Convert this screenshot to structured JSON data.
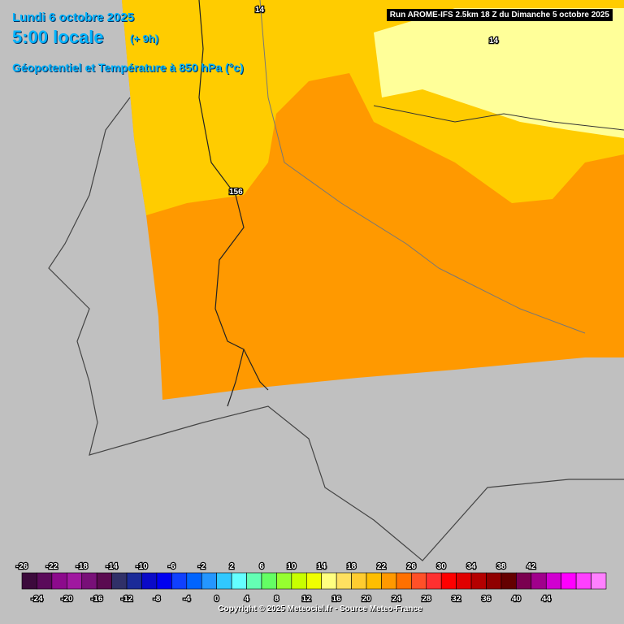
{
  "header": {
    "date": "Lundi 6 octobre 2025",
    "time": "5:00 locale",
    "lead": "(+ 9h)",
    "field": "Géopotentiel et Température à 850 hPa (°c)"
  },
  "run": "Run AROME-IFS 2.5km 18 Z du Dimanche 5 octobre 2025",
  "map_labels": [
    "14",
    "14",
    "156"
  ],
  "legend": {
    "top_labels": [
      "-26",
      "-22",
      "-18",
      "-14",
      "-10",
      "-6",
      "-2",
      "2",
      "6",
      "10",
      "14",
      "18",
      "22",
      "26",
      "30",
      "34",
      "38",
      "42"
    ],
    "bottom_labels": [
      "-24",
      "-20",
      "-16",
      "-12",
      "-8",
      "-4",
      "0",
      "4",
      "8",
      "12",
      "16",
      "20",
      "24",
      "28",
      "32",
      "36",
      "40",
      "44"
    ],
    "colors": [
      "#3c0a3c",
      "#5a0a5a",
      "#8c0a8c",
      "#a018a0",
      "#781078",
      "#5a0a50",
      "#303068",
      "#1a2a98",
      "#0a0ac8",
      "#0000f0",
      "#1040ff",
      "#0064ff",
      "#2496ff",
      "#30c8ff",
      "#64ffff",
      "#64ffb4",
      "#64ff64",
      "#96ff30",
      "#c8ff00",
      "#f0ff00",
      "#ffff80",
      "#ffe060",
      "#ffcc30",
      "#ffbe00",
      "#ff9900",
      "#ff7000",
      "#ff5028",
      "#ff3030",
      "#ff0000",
      "#e00000",
      "#b40000",
      "#900000",
      "#640000",
      "#7a0050",
      "#a0008c",
      "#d000d0",
      "#ff00ff",
      "#ff40ff",
      "#ff80ff"
    ]
  },
  "copyright": "Copyright © 2025 Meteociel.fr - Source Meteo-France"
}
